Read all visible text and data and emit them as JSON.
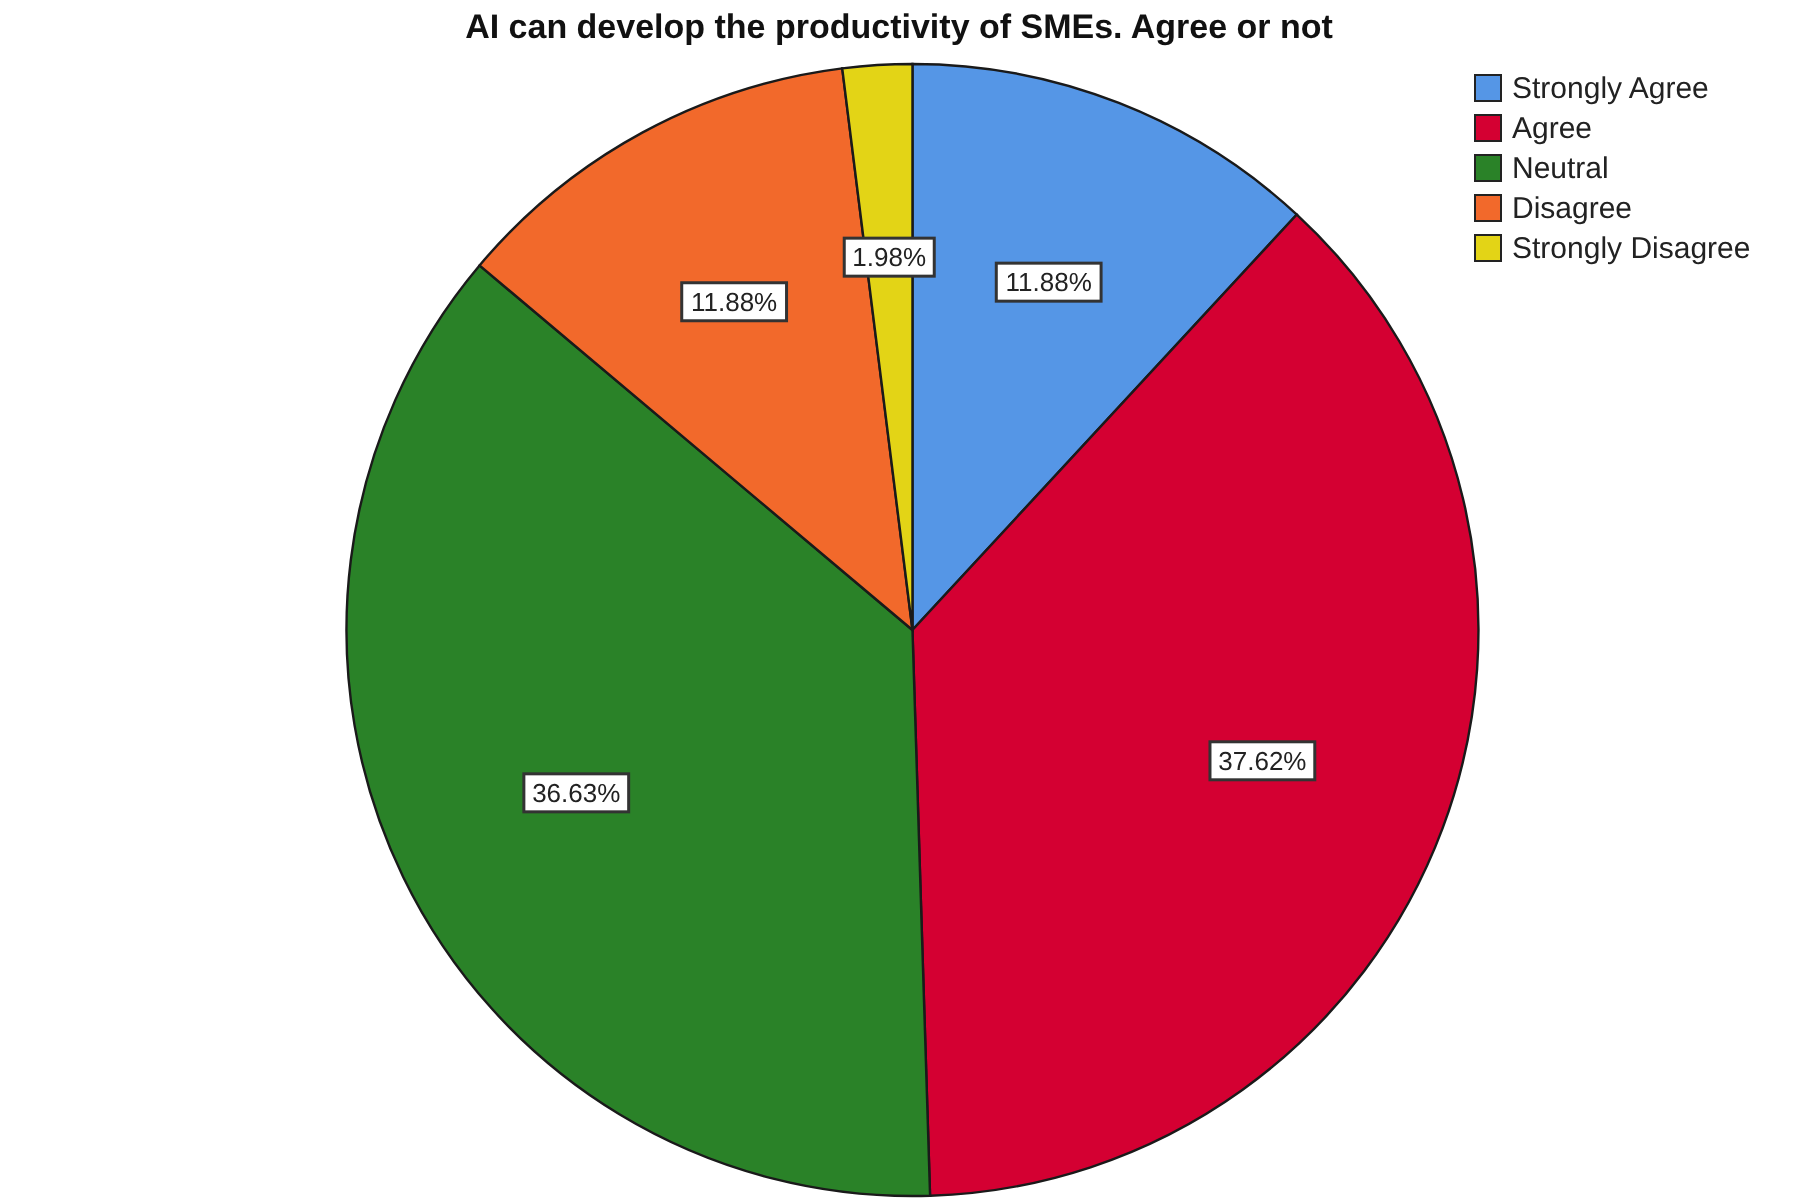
{
  "chart_data": {
    "type": "pie",
    "title": "AI can develop the productivity of SMEs. Agree or not",
    "categories": [
      "Strongly Agree",
      "Agree",
      "Neutral",
      "Disagree",
      "Strongly Disagree"
    ],
    "values": [
      11.88,
      37.62,
      36.63,
      11.88,
      1.98
    ],
    "colors": [
      "#5596e6",
      "#d40032",
      "#2a8228",
      "#f2692b",
      "#e3d416"
    ],
    "value_labels": [
      "11.88%",
      "37.62%",
      "36.63%",
      "11.88%",
      "1.98%"
    ],
    "legend": "top right"
  }
}
